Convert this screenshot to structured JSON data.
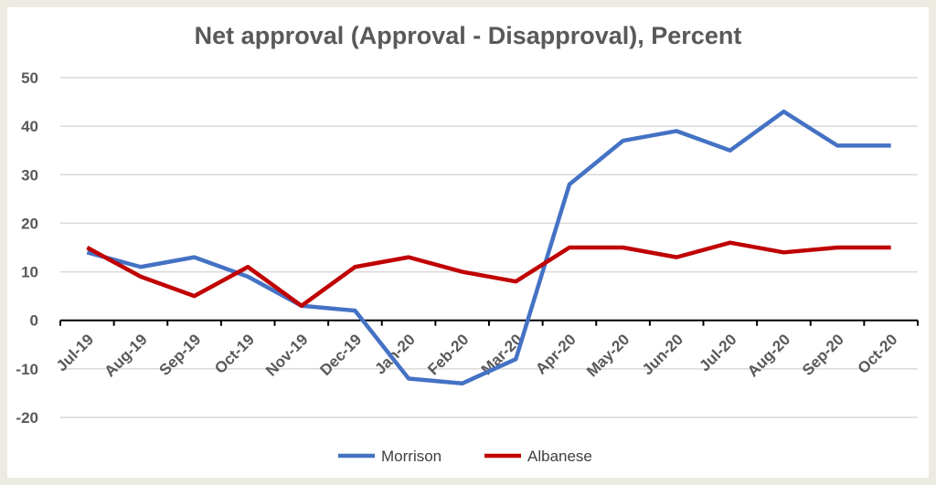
{
  "chart_data": {
    "type": "line",
    "title": "Net approval (Approval - Disapproval), Percent",
    "xlabel": "",
    "ylabel": "",
    "categories": [
      "Jul-19",
      "Aug-19",
      "Sep-19",
      "Oct-19",
      "Nov-19",
      "Dec-19",
      "Jan-20",
      "Feb-20",
      "Mar-20",
      "Apr-20",
      "May-20",
      "Jun-20",
      "Jul-20",
      "Aug-20",
      "Sep-20",
      "Oct-20"
    ],
    "ylim": [
      -20,
      50
    ],
    "yticks": [
      "50",
      "40",
      "30",
      "20",
      "10",
      "0",
      "-10",
      "-20"
    ],
    "grid": true,
    "legend_position": "bottom",
    "series": [
      {
        "name": "Morrison",
        "color": "#4472c4",
        "values": [
          14,
          11,
          13,
          9,
          3,
          2,
          -12,
          -13,
          -8,
          28,
          37,
          39,
          35,
          43,
          36,
          36
        ]
      },
      {
        "name": "Albanese",
        "color": "#c00000",
        "values": [
          15,
          9,
          5,
          11,
          3,
          11,
          13,
          10,
          8,
          15,
          15,
          13,
          16,
          14,
          15,
          15
        ]
      }
    ]
  }
}
